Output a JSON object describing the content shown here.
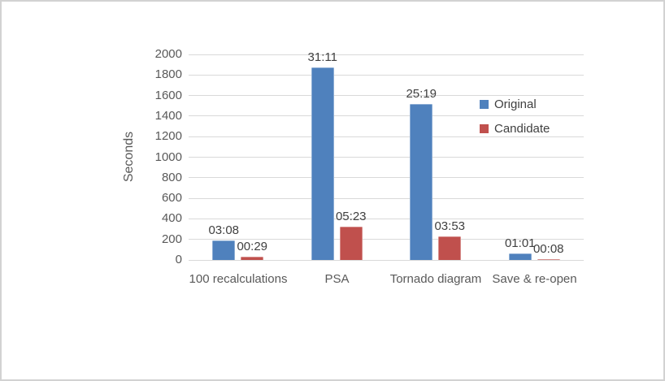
{
  "frame": {
    "background": "#ffffff",
    "border_color": "#d2d2d2"
  },
  "chart_data": {
    "type": "bar",
    "title": "",
    "xlabel": "",
    "ylabel": "Seconds",
    "ylim": [
      0,
      2000
    ],
    "ytick_step": 200,
    "yticks": [
      0,
      200,
      400,
      600,
      800,
      1000,
      1200,
      1400,
      1600,
      1800,
      2000
    ],
    "grid": "horizontal",
    "gridline_color": "#d9d9d9",
    "legend_position": "right",
    "categories": [
      "100 recalculations",
      "PSA",
      "Tornado diagram",
      "Save & re-open"
    ],
    "series": [
      {
        "name": "Original",
        "color": "#4f81bd",
        "values": [
          188,
          1871,
          1519,
          61
        ],
        "data_labels": [
          "03:08",
          "31:11",
          "25:19",
          "01:01"
        ]
      },
      {
        "name": "Candidate",
        "color": "#c0504d",
        "values": [
          29,
          323,
          233,
          8
        ],
        "data_labels": [
          "00:29",
          "05:23",
          "03:53",
          "00:08"
        ]
      }
    ]
  },
  "legend": {
    "items": [
      {
        "label": "Original",
        "color": "#4f81bd"
      },
      {
        "label": "Candidate",
        "color": "#c0504d"
      }
    ]
  }
}
